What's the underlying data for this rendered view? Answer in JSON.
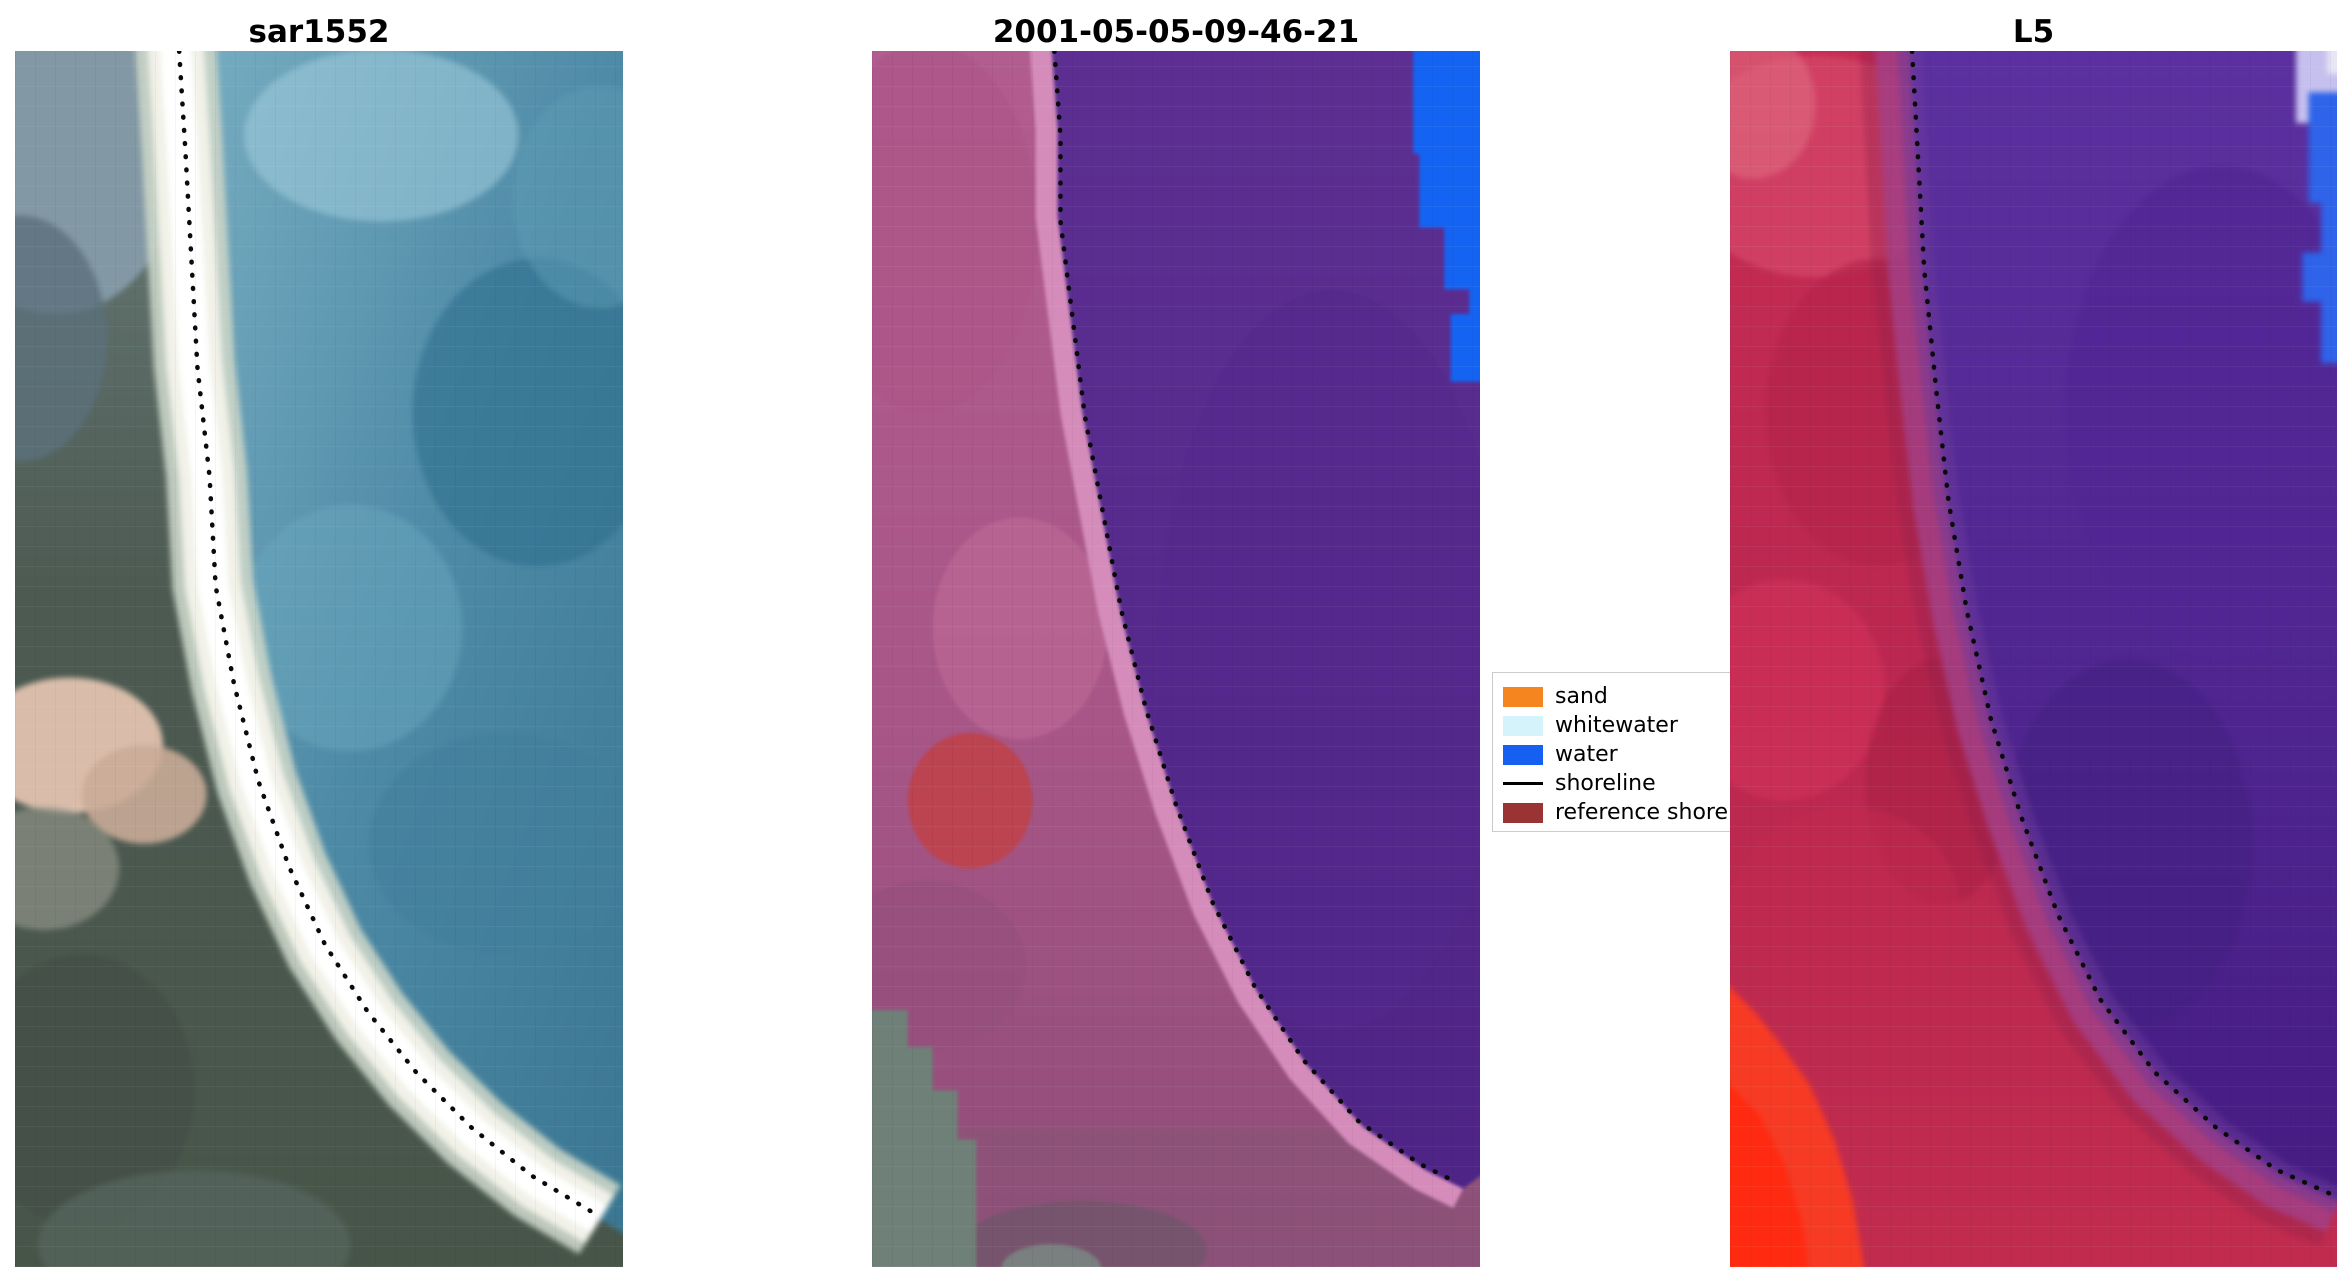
{
  "figure": {
    "background": "#ffffff",
    "legend": {
      "items": [
        {
          "label": "sand",
          "swatch": "patch",
          "color": "#f5861f"
        },
        {
          "label": "whitewater",
          "swatch": "patch",
          "color": "#d5f3fa"
        },
        {
          "label": "water",
          "swatch": "patch",
          "color": "#1560f0"
        },
        {
          "label": "shoreline",
          "swatch": "line",
          "color": "#000000"
        },
        {
          "label": "reference shoreline",
          "swatch": "patch",
          "color": "#9a3434"
        }
      ]
    }
  },
  "chart_data": {
    "type": "image",
    "layout": "1x3 grid of satellite-image subplots with dotted shoreline overlay; legend box between panel 2 and panel 3",
    "panels": [
      {
        "title": "sar1552",
        "description": "Optical/SAR crop: teal ocean right, bright white sand beach band, dark green-gray land left with tan sand patch; dotted black shoreline from top-left to bottom-right",
        "shoreline": [
          [
            27,
            0
          ],
          [
            28,
            16
          ],
          [
            29,
            34
          ],
          [
            30,
            52
          ],
          [
            32,
            70
          ],
          [
            33,
            88
          ],
          [
            36,
            104
          ],
          [
            40,
            120
          ],
          [
            45,
            134
          ],
          [
            51,
            147
          ],
          [
            58,
            158
          ],
          [
            66,
            168
          ],
          [
            75,
            177
          ],
          [
            85,
            185
          ],
          [
            95,
            191
          ]
        ],
        "water_close": [
          [
            100,
            194
          ],
          [
            100,
            0
          ]
        ]
      },
      {
        "title": "2001-05-05-09-46-21",
        "description": "Classified scene: purple water mass right, pink land/sand left, blue water patch top-right, dark red reference blob mid-left, gray-green patch bottom-left; dotted shoreline along class boundary",
        "shoreline": [
          [
            30,
            0
          ],
          [
            31,
            14
          ],
          [
            31,
            28
          ],
          [
            33,
            44
          ],
          [
            35,
            60
          ],
          [
            38,
            76
          ],
          [
            41,
            92
          ],
          [
            45,
            108
          ],
          [
            50,
            124
          ],
          [
            56,
            140
          ],
          [
            63,
            154
          ],
          [
            71,
            166
          ],
          [
            80,
            176
          ],
          [
            90,
            183
          ],
          [
            96,
            186
          ]
        ],
        "water_close": [
          [
            100,
            183
          ],
          [
            100,
            0
          ]
        ]
      },
      {
        "title": "L5",
        "description": "Landsat-5 false-color crop: red/crimson land left, purple ocean right, blue patch top-right corner, bright red-orange patch bottom-left; dotted shoreline",
        "shoreline": [
          [
            30,
            0
          ],
          [
            31,
            18
          ],
          [
            32,
            36
          ],
          [
            34,
            56
          ],
          [
            36,
            74
          ],
          [
            39,
            92
          ],
          [
            43,
            110
          ],
          [
            48,
            126
          ],
          [
            54,
            142
          ],
          [
            61,
            156
          ],
          [
            70,
            168
          ],
          [
            80,
            177
          ],
          [
            90,
            184
          ],
          [
            99,
            188
          ]
        ],
        "water_close": [
          [
            100,
            188
          ],
          [
            100,
            0
          ]
        ]
      }
    ],
    "legend_entries": [
      "sand",
      "whitewater",
      "water",
      "shoreline",
      "reference shoreline"
    ]
  }
}
